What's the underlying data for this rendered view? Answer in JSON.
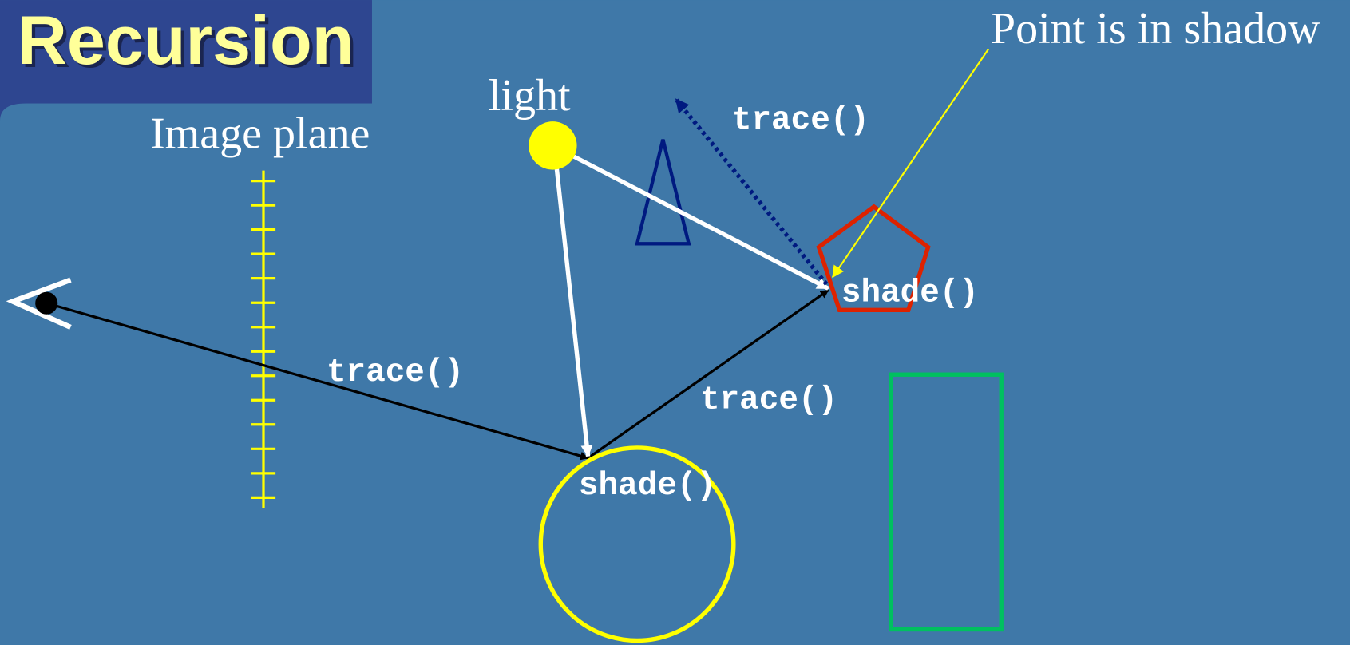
{
  "title": "Recursion",
  "labels": {
    "image_plane": "Image plane",
    "light": "light",
    "point_in_shadow": "Point is in shadow"
  },
  "calls": [
    "trace()",
    "trace()",
    "trace()",
    "shade()",
    "shade()"
  ]
}
